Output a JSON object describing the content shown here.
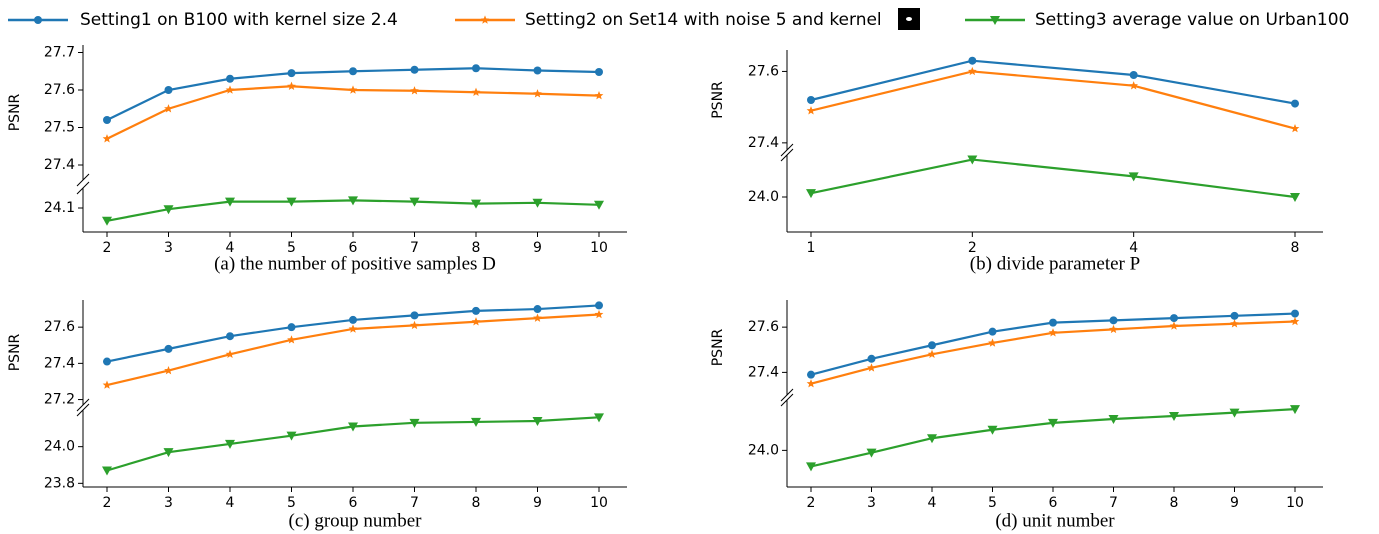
{
  "legend": {
    "series": [
      {
        "name": "Setting1 on B100 with kernel size 2.4",
        "color": "#1f77b4",
        "marker": "circle"
      },
      {
        "name": "Setting2 on Set14 with noise 5 and kernel",
        "color": "#ff7f0e",
        "marker": "star"
      },
      {
        "name": "Setting3 average value on Urban100",
        "color": "#2ca02c",
        "marker": "triangle-down"
      }
    ]
  },
  "chart_data": [
    {
      "type": "line",
      "caption": "(a) the number of positive samples D",
      "ylabel": "PSNR",
      "categories": [
        "2",
        "3",
        "4",
        "5",
        "6",
        "7",
        "8",
        "9",
        "10"
      ],
      "ylim": [
        27.36,
        27.72
      ],
      "yticks": [
        27.4,
        27.5,
        27.6,
        27.7
      ],
      "y2lim": [
        24.04,
        24.15
      ],
      "y2ticks": [
        24.1
      ],
      "series": [
        {
          "values": [
            27.52,
            27.6,
            27.63,
            27.645,
            27.65,
            27.654,
            27.658,
            27.652,
            27.648
          ]
        },
        {
          "values": [
            27.47,
            27.55,
            27.6,
            27.61,
            27.6,
            27.598,
            27.594,
            27.59,
            27.585
          ]
        },
        {
          "values": [
            24.068,
            24.097,
            24.116,
            24.116,
            24.119,
            24.116,
            24.111,
            24.113,
            24.108
          ],
          "axis": "y2"
        }
      ]
    },
    {
      "type": "line",
      "caption": "(b) divide parameter P",
      "ylabel": "PSNR",
      "categories": [
        "1",
        "2",
        "4",
        "8"
      ],
      "ylim": [
        27.38,
        27.66
      ],
      "yticks": [
        27.4,
        27.6
      ],
      "y2lim": [
        23.9,
        24.12
      ],
      "y2ticks": [
        {
          "value": 24,
          "label": "24.0"
        }
      ],
      "series": [
        {
          "values": [
            27.52,
            27.63,
            27.59,
            27.51
          ]
        },
        {
          "values": [
            27.49,
            27.6,
            27.56,
            27.44
          ]
        },
        {
          "values": [
            24.011,
            24.107,
            24.059,
            24.0
          ],
          "axis": "y2"
        }
      ]
    },
    {
      "type": "line",
      "caption": "(c) group number",
      "ylabel": "PSNR",
      "categories": [
        "2",
        "3",
        "4",
        "5",
        "6",
        "7",
        "8",
        "9",
        "10"
      ],
      "ylim": [
        27.17,
        27.75
      ],
      "yticks": [
        27.2,
        27.4,
        27.6
      ],
      "y2lim": [
        23.78,
        24.2
      ],
      "y2ticks": [
        23.8,
        {
          "value": 24,
          "label": "24.0"
        }
      ],
      "series": [
        {
          "values": [
            27.41,
            27.48,
            27.55,
            27.6,
            27.64,
            27.665,
            27.69,
            27.7,
            27.72
          ]
        },
        {
          "values": [
            27.28,
            27.36,
            27.45,
            27.53,
            27.59,
            27.61,
            27.63,
            27.65,
            27.67
          ]
        },
        {
          "values": [
            23.87,
            23.97,
            24.015,
            24.06,
            24.11,
            24.13,
            24.135,
            24.14,
            24.16
          ],
          "axis": "y2"
        }
      ]
    },
    {
      "type": "line",
      "caption": "(d) unit number",
      "ylabel": "PSNR",
      "categories": [
        "2",
        "3",
        "4",
        "5",
        "6",
        "7",
        "8",
        "9",
        "10"
      ],
      "ylim": [
        27.3,
        27.72
      ],
      "yticks": [
        27.4,
        27.6
      ],
      "y2lim": [
        23.84,
        24.22
      ],
      "y2ticks": [
        {
          "value": 24,
          "label": "24.0"
        }
      ],
      "series": [
        {
          "values": [
            27.39,
            27.46,
            27.52,
            27.58,
            27.62,
            27.63,
            27.64,
            27.65,
            27.66
          ]
        },
        {
          "values": [
            27.35,
            27.42,
            27.48,
            27.53,
            27.575,
            27.59,
            27.605,
            27.615,
            27.625
          ]
        },
        {
          "values": [
            23.93,
            23.99,
            24.053,
            24.09,
            24.12,
            24.137,
            24.15,
            24.165,
            24.18
          ],
          "axis": "y2"
        }
      ]
    }
  ]
}
